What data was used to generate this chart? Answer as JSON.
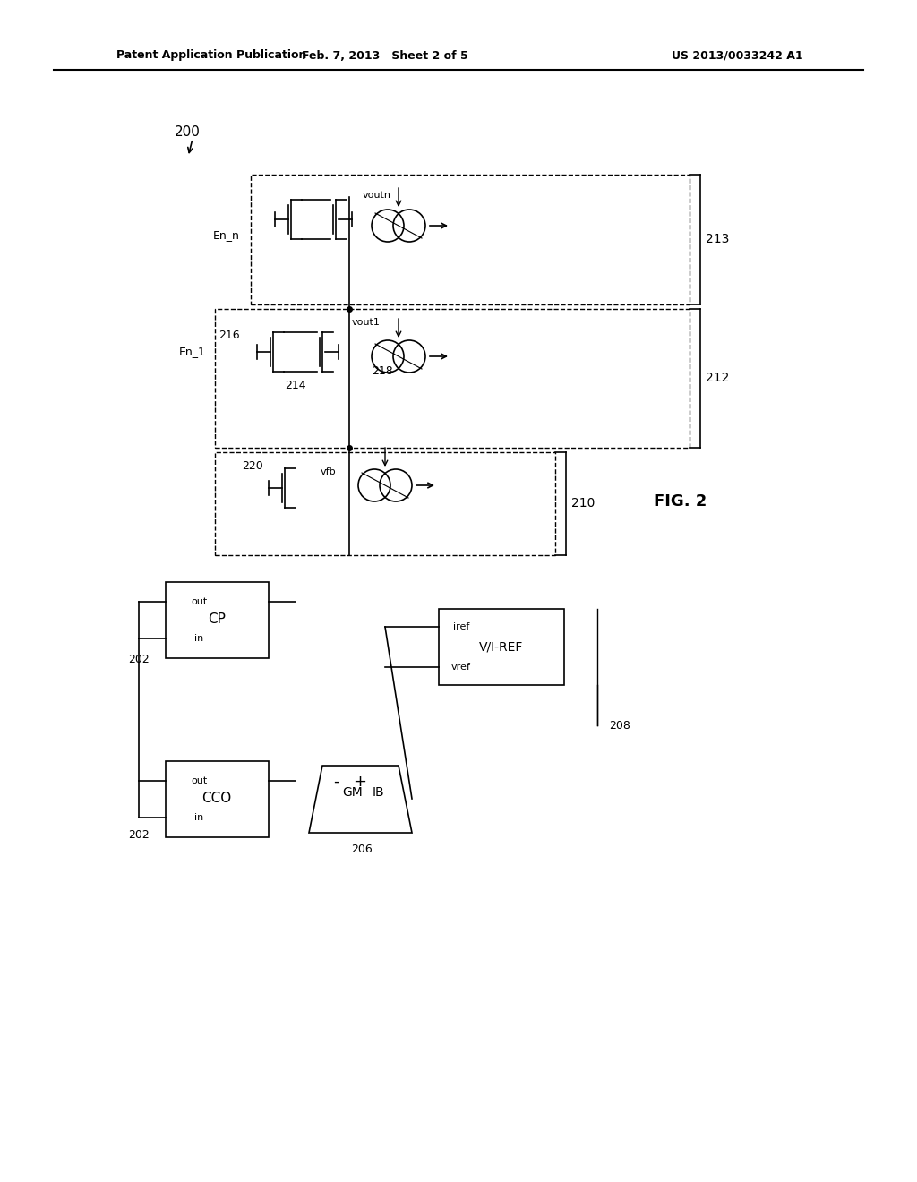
{
  "bg_color": "#ffffff",
  "header_left": "Patent Application Publication",
  "header_mid": "Feb. 7, 2013   Sheet 2 of 5",
  "header_right": "US 2013/0033242 A1",
  "fig_label": "FIG. 2",
  "title": "200",
  "label_213": "213",
  "label_212": "212",
  "label_210": "210",
  "label_208": "208",
  "label_202": "202",
  "label_206": "206",
  "label_216": "216",
  "label_214": "214",
  "label_218": "218",
  "label_220": "220",
  "label_voutn": "voutn",
  "label_vout1": "vout1",
  "label_vfb": "vfb",
  "label_En_n": "En_n",
  "label_En_1": "En_1",
  "text_CP": "CP",
  "text_CCO": "CCO",
  "text_GM": "GM",
  "text_IB": "IB",
  "text_VI_REF": "V/I-REF",
  "text_out": "out",
  "text_in": "in",
  "text_iref": "iref",
  "text_vref": "vref"
}
